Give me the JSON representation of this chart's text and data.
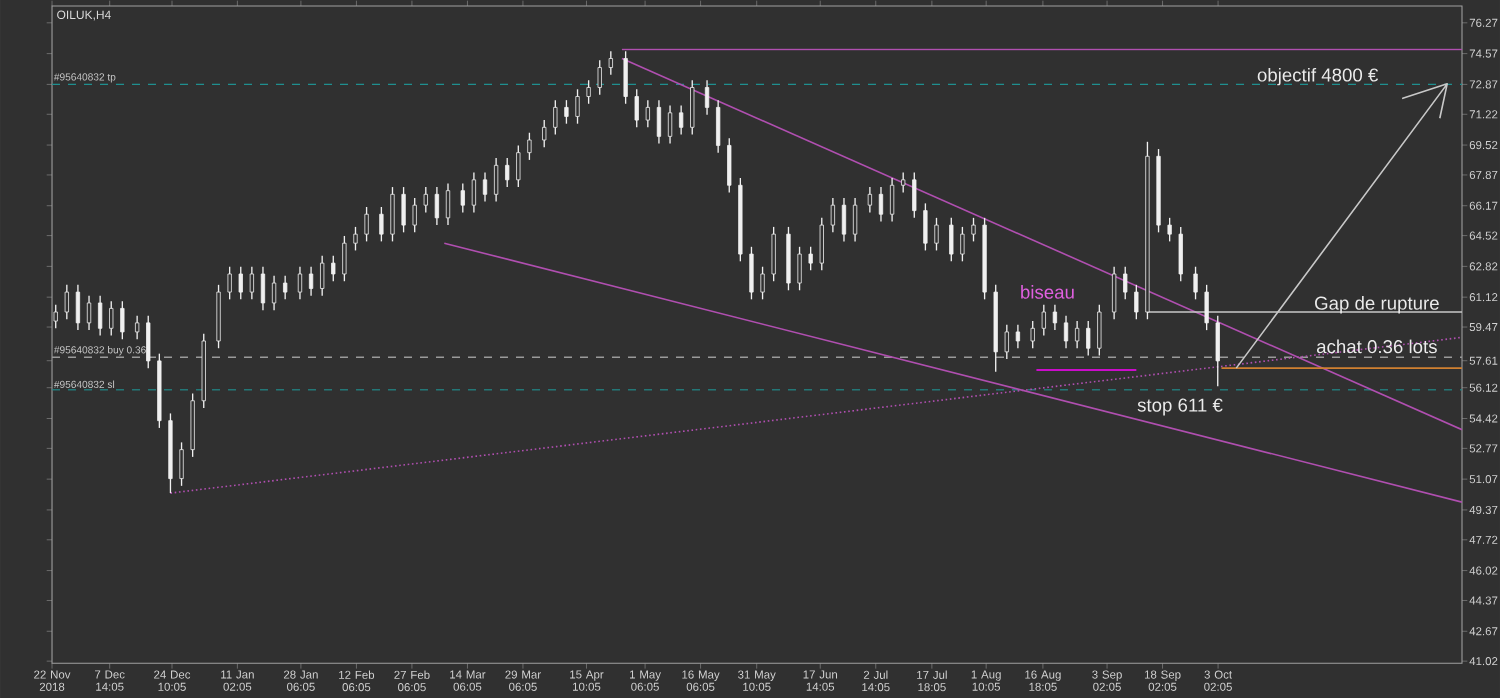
{
  "chart_data": {
    "type": "candlestick",
    "title": "OILUK,H4",
    "color": "#f0f0f0",
    "x": [
      "2018-11-23",
      "2018-11-26",
      "2018-11-29",
      "2018-12-02",
      "2018-12-05",
      "2018-12-08",
      "2018-12-11",
      "2018-12-15",
      "2018-12-18",
      "2018-12-21",
      "2018-12-24",
      "2018-12-27",
      "2018-12-30",
      "2019-01-02",
      "2019-01-06",
      "2019-01-09",
      "2019-01-12",
      "2019-01-15",
      "2019-01-18",
      "2019-01-21",
      "2019-01-24",
      "2019-01-28",
      "2019-01-31",
      "2019-02-03",
      "2019-02-06",
      "2019-02-09",
      "2019-02-12",
      "2019-02-15",
      "2019-02-19",
      "2019-02-22",
      "2019-02-25",
      "2019-02-28",
      "2019-03-03",
      "2019-03-06",
      "2019-03-09",
      "2019-03-13",
      "2019-03-16",
      "2019-03-19",
      "2019-03-22",
      "2019-03-25",
      "2019-03-28",
      "2019-03-31",
      "2019-04-04",
      "2019-04-07",
      "2019-04-10",
      "2019-04-13",
      "2019-04-16",
      "2019-04-19",
      "2019-04-22",
      "2019-04-26",
      "2019-04-29",
      "2019-05-02",
      "2019-05-05",
      "2019-05-08",
      "2019-05-11",
      "2019-05-14",
      "2019-05-18",
      "2019-05-21",
      "2019-05-24",
      "2019-05-27",
      "2019-05-30",
      "2019-06-02",
      "2019-06-05",
      "2019-06-09",
      "2019-06-12",
      "2019-06-15",
      "2019-06-18",
      "2019-06-21",
      "2019-06-24",
      "2019-06-27",
      "2019-07-01",
      "2019-07-04",
      "2019-07-07",
      "2019-07-10",
      "2019-07-13",
      "2019-07-16",
      "2019-07-19",
      "2019-07-23",
      "2019-07-26",
      "2019-07-29",
      "2019-08-01",
      "2019-08-04",
      "2019-08-07",
      "2019-08-10",
      "2019-08-14",
      "2019-08-17",
      "2019-08-20",
      "2019-08-23",
      "2019-08-26",
      "2019-08-29",
      "2019-09-01",
      "2019-09-05",
      "2019-09-08",
      "2019-09-11",
      "2019-09-14",
      "2019-09-17",
      "2019-09-20",
      "2019-09-23",
      "2019-09-27",
      "2019-09-30",
      "2019-10-03"
    ],
    "ohlc": [
      [
        59.8,
        60.7,
        59.4,
        60.3
      ],
      [
        60.3,
        61.8,
        59.9,
        61.4
      ],
      [
        61.4,
        61.8,
        59.3,
        59.7
      ],
      [
        59.7,
        61.2,
        59.3,
        60.8
      ],
      [
        60.8,
        61.2,
        59.0,
        59.4
      ],
      [
        59.4,
        60.9,
        59.0,
        60.5
      ],
      [
        60.5,
        60.9,
        58.8,
        59.2
      ],
      [
        59.2,
        60.1,
        58.8,
        59.7
      ],
      [
        59.7,
        60.1,
        57.2,
        57.6
      ],
      [
        57.6,
        58.0,
        53.9,
        54.3
      ],
      [
        54.3,
        54.7,
        50.3,
        51.1
      ],
      [
        51.1,
        53.1,
        50.7,
        52.7
      ],
      [
        52.7,
        55.8,
        52.3,
        55.4
      ],
      [
        55.4,
        59.1,
        55.0,
        58.7
      ],
      [
        58.7,
        61.8,
        58.3,
        61.4
      ],
      [
        61.4,
        62.8,
        61.0,
        62.4
      ],
      [
        62.4,
        62.8,
        61.0,
        61.4
      ],
      [
        61.4,
        62.8,
        61.0,
        62.4
      ],
      [
        62.4,
        62.8,
        60.4,
        60.8
      ],
      [
        60.8,
        62.3,
        60.4,
        61.9
      ],
      [
        61.9,
        62.3,
        61.0,
        61.4
      ],
      [
        61.4,
        62.8,
        61.0,
        62.4
      ],
      [
        62.4,
        62.8,
        61.2,
        61.6
      ],
      [
        61.6,
        63.4,
        61.2,
        63.0
      ],
      [
        63.0,
        63.4,
        62.0,
        62.4
      ],
      [
        62.4,
        64.5,
        62.0,
        64.1
      ],
      [
        64.1,
        65.0,
        63.7,
        64.6
      ],
      [
        64.6,
        66.1,
        64.2,
        65.7
      ],
      [
        65.7,
        66.1,
        64.2,
        64.6
      ],
      [
        64.6,
        67.2,
        64.2,
        66.8
      ],
      [
        66.8,
        67.2,
        64.7,
        65.1
      ],
      [
        65.1,
        66.6,
        64.7,
        66.2
      ],
      [
        66.2,
        67.2,
        65.8,
        66.8
      ],
      [
        66.8,
        67.2,
        65.1,
        65.5
      ],
      [
        65.5,
        67.4,
        65.1,
        67.0
      ],
      [
        67.0,
        67.4,
        65.8,
        66.2
      ],
      [
        66.2,
        68.0,
        65.8,
        67.6
      ],
      [
        67.6,
        68.0,
        66.4,
        66.8
      ],
      [
        66.8,
        68.8,
        66.4,
        68.4
      ],
      [
        68.4,
        68.8,
        67.2,
        67.6
      ],
      [
        67.6,
        69.5,
        67.2,
        69.1
      ],
      [
        69.1,
        70.2,
        68.7,
        69.8
      ],
      [
        69.8,
        70.9,
        69.4,
        70.5
      ],
      [
        70.5,
        72.0,
        70.1,
        71.6
      ],
      [
        71.6,
        72.0,
        70.7,
        71.1
      ],
      [
        71.1,
        72.6,
        70.7,
        72.2
      ],
      [
        72.2,
        73.1,
        71.8,
        72.7
      ],
      [
        72.7,
        74.2,
        72.3,
        73.8
      ],
      [
        73.8,
        74.7,
        73.4,
        74.3
      ],
      [
        74.3,
        74.7,
        71.8,
        72.2
      ],
      [
        72.2,
        72.6,
        70.5,
        70.9
      ],
      [
        70.9,
        72.0,
        70.5,
        71.6
      ],
      [
        71.6,
        72.0,
        69.6,
        70.0
      ],
      [
        70.0,
        71.7,
        69.6,
        71.3
      ],
      [
        71.3,
        71.7,
        70.1,
        70.5
      ],
      [
        70.5,
        73.1,
        70.1,
        72.7
      ],
      [
        72.7,
        73.1,
        71.2,
        71.6
      ],
      [
        71.6,
        72.0,
        69.1,
        69.5
      ],
      [
        69.5,
        69.9,
        66.9,
        67.3
      ],
      [
        67.3,
        67.7,
        63.1,
        63.5
      ],
      [
        63.5,
        63.9,
        61.0,
        61.4
      ],
      [
        61.4,
        62.8,
        61.0,
        62.4
      ],
      [
        62.4,
        65.0,
        62.0,
        64.6
      ],
      [
        64.6,
        65.0,
        61.5,
        61.9
      ],
      [
        61.9,
        63.9,
        61.5,
        63.5
      ],
      [
        63.5,
        63.9,
        62.6,
        63.0
      ],
      [
        63.0,
        65.5,
        62.6,
        65.1
      ],
      [
        65.1,
        66.6,
        64.7,
        66.2
      ],
      [
        66.2,
        66.6,
        64.2,
        64.6
      ],
      [
        64.6,
        66.6,
        64.2,
        66.2
      ],
      [
        66.2,
        67.2,
        65.8,
        66.8
      ],
      [
        66.8,
        67.2,
        65.3,
        65.7
      ],
      [
        65.7,
        67.7,
        65.3,
        67.3
      ],
      [
        67.3,
        68.0,
        66.9,
        67.6
      ],
      [
        67.6,
        68.0,
        65.5,
        65.9
      ],
      [
        65.9,
        66.3,
        63.7,
        64.1
      ],
      [
        64.1,
        65.5,
        63.7,
        65.1
      ],
      [
        65.1,
        65.5,
        63.1,
        63.5
      ],
      [
        63.5,
        65.0,
        63.1,
        64.6
      ],
      [
        64.6,
        65.5,
        64.2,
        65.1
      ],
      [
        65.1,
        65.5,
        61.0,
        61.4
      ],
      [
        61.4,
        61.8,
        57.0,
        58.1
      ],
      [
        58.1,
        59.6,
        57.7,
        59.2
      ],
      [
        59.2,
        59.6,
        58.3,
        58.7
      ],
      [
        58.7,
        59.8,
        58.3,
        59.4
      ],
      [
        59.4,
        60.7,
        59.0,
        60.3
      ],
      [
        60.3,
        60.7,
        59.3,
        59.7
      ],
      [
        59.7,
        60.1,
        58.3,
        58.7
      ],
      [
        58.7,
        59.8,
        58.3,
        59.4
      ],
      [
        59.4,
        59.8,
        57.9,
        58.3
      ],
      [
        58.3,
        60.7,
        57.9,
        60.3
      ],
      [
        60.3,
        62.8,
        59.9,
        62.4
      ],
      [
        62.4,
        62.8,
        61.0,
        61.4
      ],
      [
        61.4,
        61.8,
        59.9,
        60.3
      ],
      [
        60.3,
        69.7,
        59.9,
        68.9
      ],
      [
        68.9,
        69.3,
        64.7,
        65.1
      ],
      [
        65.1,
        65.5,
        64.2,
        64.6
      ],
      [
        64.6,
        65.0,
        62.0,
        62.4
      ],
      [
        62.4,
        62.8,
        61.0,
        61.4
      ],
      [
        61.4,
        61.8,
        59.3,
        59.7
      ],
      [
        59.7,
        60.1,
        56.2,
        57.6
      ]
    ],
    "series": [
      {
        "type": "line",
        "color": "#b04fb0",
        "line_style": "solid",
        "x": [
          "2019-04-25",
          "2019-12-08"
        ],
        "values": [
          74.3,
          53.8
        ]
      },
      {
        "type": "line",
        "color": "#b04fb0",
        "line_style": "solid",
        "x": [
          "2019-03-08",
          "2019-12-08"
        ],
        "values": [
          64.1,
          49.8
        ]
      },
      {
        "type": "line",
        "color": "#b04fb0",
        "line_style": "dotted",
        "x": [
          "2018-12-24",
          "2019-12-08"
        ],
        "values": [
          50.3,
          58.9
        ]
      },
      {
        "type": "line",
        "color": "#b04fb0",
        "line_style": "solid",
        "x": [
          "2019-04-25",
          "2019-12-08"
        ],
        "values": [
          74.8,
          74.8
        ]
      },
      {
        "type": "line",
        "color": "#c8c8c8",
        "line_style": "solid",
        "x": [
          "2019-09-14",
          "2019-12-08"
        ],
        "values": [
          60.3,
          60.3
        ]
      },
      {
        "type": "line",
        "color": "#d08030",
        "line_style": "solid",
        "x": [
          "2019-10-04",
          "2019-12-08"
        ],
        "values": [
          57.2,
          57.2
        ]
      },
      {
        "type": "line",
        "color": "#ff00ff",
        "line_style": "solid",
        "x": [
          "2019-08-15",
          "2019-09-11"
        ],
        "values": [
          57.1,
          57.1
        ]
      },
      {
        "type": "line",
        "color": "#c8c8c8",
        "line_style": "solid",
        "x": [
          "2019-10-08",
          "2019-12-04",
          "2019-11-22",
          "2019-12-04",
          "2019-12-02"
        ],
        "values": [
          57.2,
          72.9,
          72.1,
          72.9,
          71.0
        ]
      }
    ],
    "xlim": [
      "2018-11-22",
      "2019-12-08"
    ],
    "xticks": [
      {
        "value": "2018-11-22",
        "label": "22 Nov 2018"
      },
      {
        "value": "2018-12-07T14:05",
        "label": "7 Dec 14:05"
      },
      {
        "value": "2018-12-24T10:05",
        "label": "24 Dec 10:05"
      },
      {
        "value": "2019-01-11T02:05",
        "label": "11 Jan 02:05"
      },
      {
        "value": "2019-01-28T06:05",
        "label": "28 Jan 06:05"
      },
      {
        "value": "2019-02-12T06:05",
        "label": "12 Feb 06:05"
      },
      {
        "value": "2019-02-27T06:05",
        "label": "27 Feb 06:05"
      },
      {
        "value": "2019-03-14T06:05",
        "label": "14 Mar 06:05"
      },
      {
        "value": "2019-03-29T06:05",
        "label": "29 Mar 06:05"
      },
      {
        "value": "2019-04-15T10:05",
        "label": "15 Apr 10:05"
      },
      {
        "value": "2019-05-01T06:05",
        "label": "1 May 06:05"
      },
      {
        "value": "2019-05-16T06:05",
        "label": "16 May 06:05"
      },
      {
        "value": "2019-05-31T10:05",
        "label": "31 May 10:05"
      },
      {
        "value": "2019-06-17T14:05",
        "label": "17 Jun 14:05"
      },
      {
        "value": "2019-07-02T14:05",
        "label": "2 Jul 14:05"
      },
      {
        "value": "2019-07-17T18:05",
        "label": "17 Jul 18:05"
      },
      {
        "value": "2019-08-01T10:05",
        "label": "1 Aug 10:05"
      },
      {
        "value": "2019-08-16T18:05",
        "label": "16 Aug 18:05"
      },
      {
        "value": "2019-09-03T02:05",
        "label": "3 Sep 02:05"
      },
      {
        "value": "2019-09-18T02:05",
        "label": "18 Sep 02:05"
      },
      {
        "value": "2019-10-03T02:05",
        "label": "3 Oct 02:05"
      }
    ],
    "ylim": [
      40.9,
      77.2
    ],
    "yticks": [
      41.02,
      42.67,
      44.37,
      46.02,
      47.72,
      49.37,
      51.07,
      52.77,
      54.42,
      56.12,
      57.61,
      59.47,
      61.12,
      62.82,
      64.52,
      66.17,
      67.87,
      69.52,
      71.22,
      72.87,
      74.57,
      76.27
    ],
    "ref_lines": [
      {
        "axis": "y",
        "value": 72.87,
        "label": "#95640832 tp",
        "color": "#1f8f8f",
        "line_style": "dashed"
      },
      {
        "axis": "y",
        "value": 57.8,
        "label": "#95640832 buy 0.36",
        "color": "#9a9a9a",
        "line_style": "dashed"
      },
      {
        "axis": "y",
        "value": 56.0,
        "label": "#95640832 sl",
        "color": "#1f8f8f",
        "line_style": "dashed"
      }
    ],
    "annotations": [
      {
        "text": "objectif 4800 €",
        "x": "2019-10-30",
        "y": 73.3
      },
      "biseau",
      {
        "text": "Gap de rupture",
        "x": "2019-11-15",
        "y": 60.7
      },
      {
        "text": "achat 0.36 lots",
        "x": "2019-11-15",
        "y": 58.4
      },
      "stop 611 €"
    ]
  }
}
